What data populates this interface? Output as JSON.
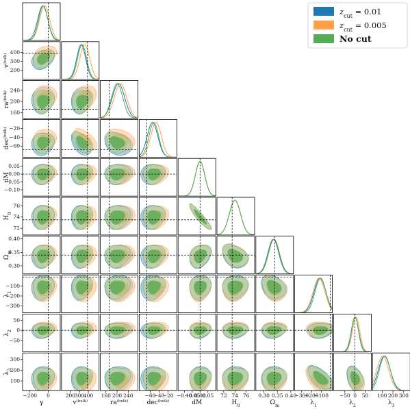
{
  "chart_data": {
    "type": "corner",
    "parameters": [
      {
        "key": "gamma",
        "label": "γ",
        "label_sub": "",
        "label_sup": "",
        "truth": 0,
        "range": [
          -280,
          130
        ],
        "ticks": [
          -200,
          0
        ],
        "tick_labels": [
          "−200",
          "0"
        ]
      },
      {
        "key": "v_bulk",
        "label": "v",
        "label_sub": "",
        "label_sup": "(bulk)",
        "truth": 390,
        "range": [
          100,
          520
        ],
        "ticks": [
          200,
          300,
          400
        ],
        "tick_labels": [
          "200",
          "300",
          "400"
        ]
      },
      {
        "key": "ra_bulk",
        "label": "ra",
        "label_sub": "",
        "label_sup": "(bulk)",
        "truth": 172,
        "range": [
          140,
          275
        ],
        "ticks": [
          160,
          200,
          240
        ],
        "tick_labels": [
          "160",
          "200",
          "240"
        ]
      },
      {
        "key": "dec_bulk",
        "label": "dec",
        "label_sub": "",
        "label_sup": "(bulk)",
        "truth": -68,
        "range": [
          -85,
          0
        ],
        "ticks": [
          -60,
          -40,
          -20
        ],
        "tick_labels": [
          "−60",
          "−40",
          "−20"
        ]
      },
      {
        "key": "dM",
        "label": "dM",
        "label_sub": "",
        "label_sup": "",
        "truth": 0.0,
        "range": [
          -0.14,
          0.1
        ],
        "ticks": [
          -0.1,
          -0.05,
          0.0,
          0.05
        ],
        "tick_labels": [
          "−0.10",
          "−0.05",
          "0.00",
          "0.05"
        ]
      },
      {
        "key": "H0",
        "label": "H",
        "label_sub": "0",
        "label_sup": "",
        "truth": 73.5,
        "range": [
          70.8,
          77.5
        ],
        "ticks": [
          72,
          74,
          76
        ],
        "tick_labels": [
          "72",
          "74",
          "76"
        ]
      },
      {
        "key": "Om",
        "label": "Ω",
        "label_sub": "m",
        "label_sup": "",
        "truth": 0.34,
        "range": [
          0.27,
          0.41
        ],
        "ticks": [
          0.3,
          0.35,
          0.4
        ],
        "tick_labels": [
          "0.30",
          "0.35",
          "0.40"
        ]
      },
      {
        "key": "lambda1",
        "label": "λ",
        "label_sub": "1",
        "label_sup": "",
        "truth": -10,
        "range": [
          -370,
          10
        ],
        "ticks": [
          -300,
          -200,
          -100
        ],
        "tick_labels": [
          "−300",
          "−200",
          "−100"
        ]
      },
      {
        "key": "lambda2",
        "label": "λ",
        "label_sub": "2",
        "label_sup": "",
        "truth": 0,
        "range": [
          -105,
          80
        ],
        "ticks": [
          -50,
          0,
          50
        ],
        "tick_labels": [
          "−50",
          "0",
          "50"
        ]
      },
      {
        "key": "lambda3",
        "label": "λ",
        "label_sub": "3",
        "label_sup": "",
        "truth": 10,
        "range": [
          10,
          360
        ],
        "ticks": [
          100,
          200,
          300
        ],
        "tick_labels": [
          "100",
          "200",
          "300"
        ]
      }
    ],
    "series": [
      {
        "name_main": "z",
        "name_sub": "cut",
        "name_rest": " = 0.01",
        "color": "#1f77b4"
      },
      {
        "name_main": "z",
        "name_sub": "cut",
        "name_rest": " = 0.005",
        "color": "#ff9f4a"
      },
      {
        "name_main": "No cut",
        "name_sub": "",
        "name_rest": "",
        "color": "#55ac55"
      }
    ],
    "posterior": {
      "means": [
        [
          -60,
          320,
          205,
          -55,
          0.0,
          74.0,
          0.335,
          -115,
          0,
          120
        ],
        [
          -40,
          360,
          212,
          -47,
          0.0,
          74.0,
          0.338,
          -125,
          5,
          105
        ],
        [
          -55,
          330,
          200,
          -52,
          0.0,
          74.0,
          0.337,
          -110,
          0,
          125
        ]
      ],
      "stds": [
        [
          55,
          50,
          22,
          12,
          0.03,
          1.0,
          0.02,
          60,
          18,
          55
        ],
        [
          55,
          55,
          22,
          12,
          0.03,
          1.0,
          0.02,
          60,
          18,
          55
        ],
        [
          50,
          50,
          20,
          11,
          0.03,
          1.0,
          0.02,
          55,
          17,
          50
        ]
      ]
    },
    "legend_position": "top-right",
    "grid": false
  }
}
